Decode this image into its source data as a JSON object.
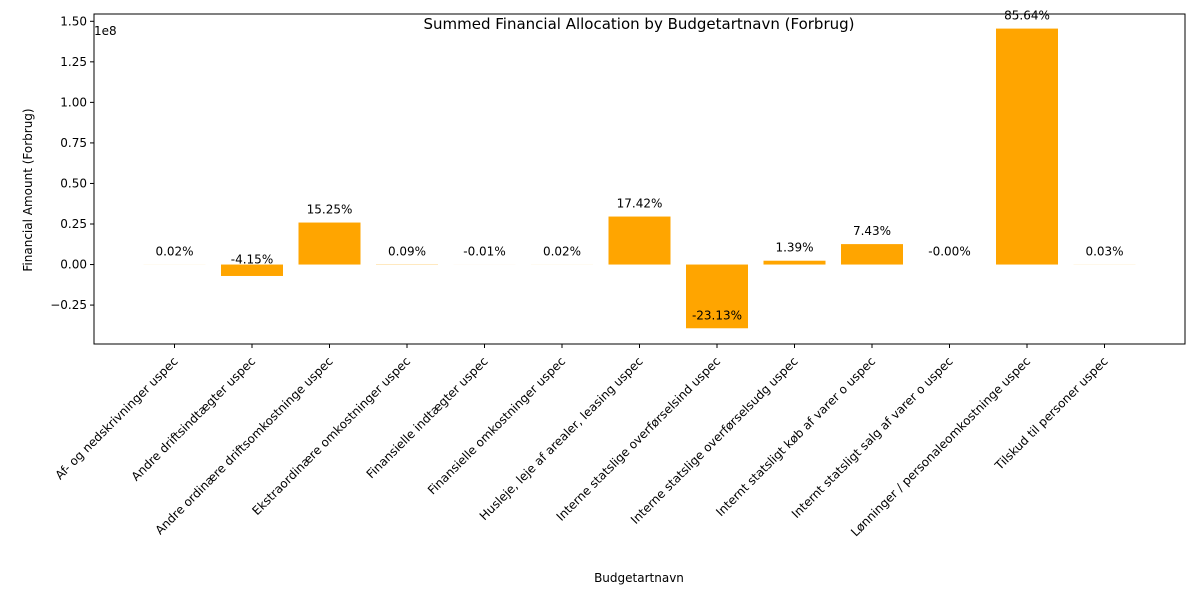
{
  "chart_data": {
    "type": "bar",
    "title": "Summed Financial Allocation by Budgetartnavn (Forbrug)",
    "xlabel": "Budgetartnavn",
    "ylabel": "Financial Amount (Forbrug)",
    "y_multiplier_label": "1e8",
    "ylim": [
      -0.49,
      1.545
    ],
    "yticks": [
      -0.25,
      0.0,
      0.25,
      0.5,
      0.75,
      1.0,
      1.25,
      1.5
    ],
    "ytick_labels": [
      "−0.25",
      "0.00",
      "0.25",
      "0.50",
      "0.75",
      "1.00",
      "1.25",
      "1.50"
    ],
    "bar_color": "#FFA500",
    "grid": false,
    "categories": [
      "Af- og nedskrivninger uspec",
      "Andre driftsindtægter uspec",
      "Andre ordinære driftsomkostninge uspec",
      "Ekstraordinære omkostninger uspec",
      "Finansielle indtægter uspec",
      "Finansielle omkostninger uspec",
      "Husleje, leje af arealer, leasing uspec",
      "Interne statslige overførselsind uspec",
      "Interne statslige overførselsudg uspec",
      "Internt statsligt køb af varer o uspec",
      "Internt statsligt salg af varer o uspec",
      "Lønninger / personaleomkostninge uspec",
      "Tilskud til personer uspec"
    ],
    "values": [
      0.0003,
      -0.0705,
      0.259,
      0.0015,
      -0.0002,
      0.0003,
      0.296,
      -0.393,
      0.0236,
      0.126,
      0.0,
      1.455,
      0.0005
    ],
    "data_labels": [
      "0.02%",
      "-4.15%",
      "15.25%",
      "0.09%",
      "-0.01%",
      "0.02%",
      "17.42%",
      "-23.13%",
      "1.39%",
      "7.43%",
      "-0.00%",
      "85.64%",
      "0.03%"
    ]
  }
}
